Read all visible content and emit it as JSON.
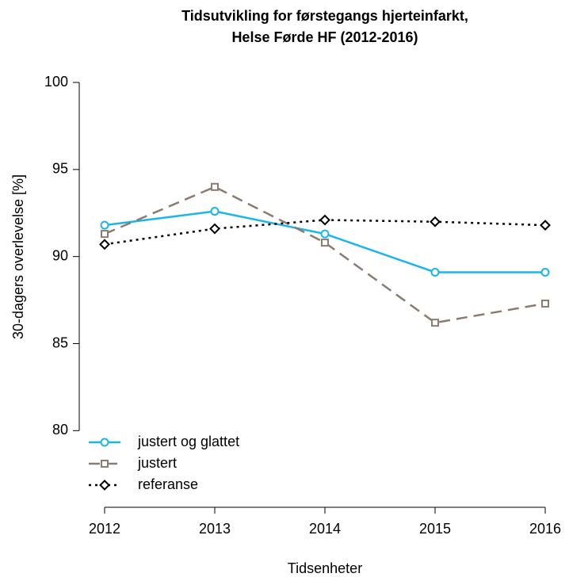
{
  "chart_data": {
    "type": "line",
    "title": [
      "Tidsutvikling for førstegangs hjerteinfarkt,",
      "Helse Førde HF (2012-2016)"
    ],
    "x_label": "Tidsenheter",
    "y_label": "30-dagers overlevelse [%]",
    "x": [
      2012,
      2013,
      2014,
      2015,
      2016
    ],
    "xlim": [
      2012,
      2016
    ],
    "xticks": [
      2012,
      2013,
      2014,
      2015,
      2016
    ],
    "ylim": [
      75.6,
      100
    ],
    "yticks": [
      80,
      85,
      90,
      95,
      100
    ],
    "legend": "bottom-left",
    "series": [
      {
        "name": "justert og glattet",
        "color": "#1ab6e8",
        "marker": "circle",
        "linestyle": "solid",
        "values": [
          91.8,
          92.6,
          91.3,
          89.1,
          89.1
        ]
      },
      {
        "name": "justert",
        "color": "#8c7b70",
        "marker": "square",
        "linestyle": "dashed",
        "values": [
          91.3,
          94.0,
          90.8,
          86.2,
          87.3
        ]
      },
      {
        "name": "referanse",
        "color": "#000000",
        "marker": "diamond",
        "linestyle": "dotted",
        "values": [
          90.7,
          91.6,
          92.1,
          92.0,
          91.8
        ]
      }
    ]
  }
}
